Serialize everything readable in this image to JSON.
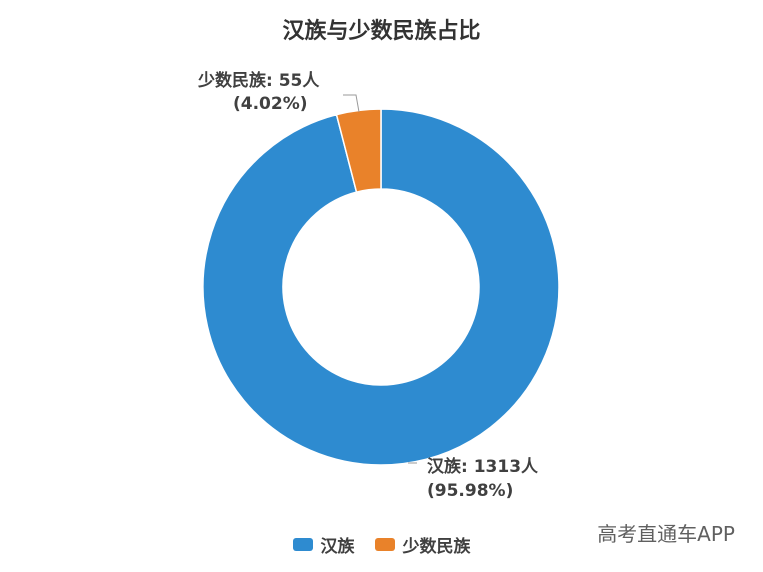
{
  "chart_data": {
    "type": "pie",
    "title": "汉族与少数民族占比",
    "donut": true,
    "slices": [
      {
        "name": "汉族",
        "value": 1313,
        "value_label": "汉族: 1313人",
        "percent_label": "(95.98%)",
        "color": "#2e8bd0"
      },
      {
        "name": "少数民族",
        "value": 55,
        "value_label": "少数民族: 55人",
        "percent_label": "(4.02%)",
        "color": "#e9822a"
      }
    ],
    "legend_position": "bottom"
  },
  "legend": {
    "items": [
      {
        "label": "汉族",
        "color": "#2e8bd0"
      },
      {
        "label": "少数民族",
        "color": "#e9822a"
      }
    ]
  },
  "watermark": "高考直通车APP"
}
